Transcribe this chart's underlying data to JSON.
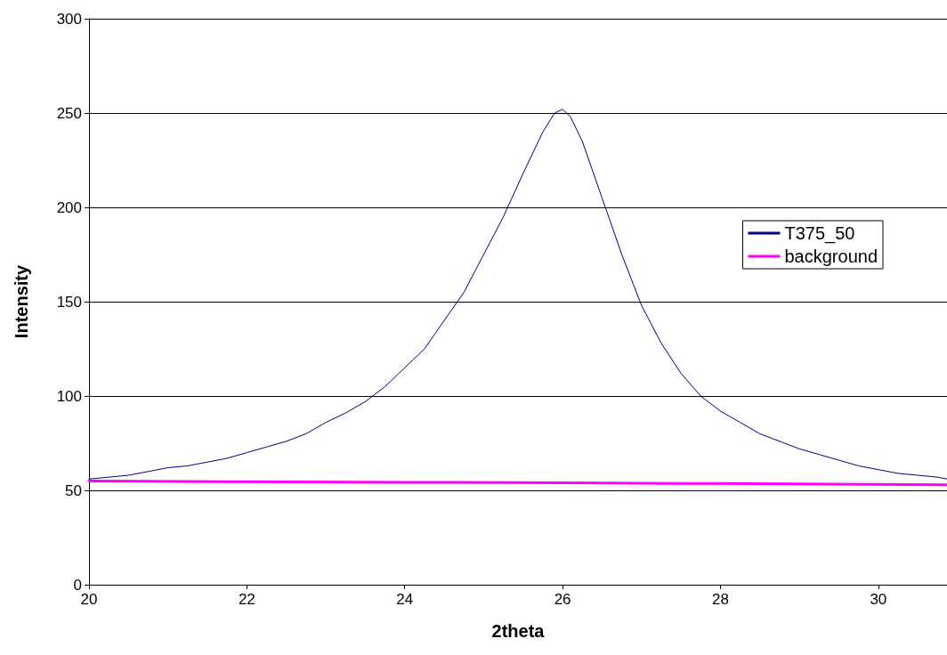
{
  "chart_data": {
    "type": "line",
    "xlabel": "2theta",
    "ylabel": "Intensity",
    "xlim": [
      20,
      30.87
    ],
    "xticks": [
      20,
      22,
      24,
      26,
      28,
      30
    ],
    "ylim": [
      0,
      300
    ],
    "yticks": [
      0,
      50,
      100,
      150,
      200,
      250,
      300
    ],
    "grid": "y",
    "legend": "right",
    "marker": "none",
    "line_style": "solid",
    "series": [
      {
        "name": "T375_50",
        "color": "#000080",
        "x": [
          20,
          20.25,
          20.5,
          20.75,
          21,
          21.25,
          21.5,
          21.75,
          22,
          22.25,
          22.5,
          22.75,
          23,
          23.25,
          23.5,
          23.75,
          24,
          24.25,
          24.5,
          24.75,
          25,
          25.25,
          25.5,
          25.75,
          25.9,
          26,
          26.1,
          26.25,
          26.5,
          26.75,
          27,
          27.25,
          27.5,
          27.75,
          28,
          28.25,
          28.5,
          28.75,
          29,
          29.25,
          29.5,
          29.75,
          30,
          30.25,
          30.5,
          30.75,
          30.87
        ],
        "values": [
          56,
          57,
          58,
          60,
          62,
          63,
          65,
          67,
          70,
          73,
          76,
          80,
          86,
          91,
          97,
          105,
          115,
          125,
          140,
          155,
          175,
          195,
          218,
          240,
          250,
          252,
          248,
          235,
          205,
          175,
          148,
          128,
          112,
          100,
          92,
          86,
          80,
          76,
          72,
          69,
          66,
          63,
          61,
          59,
          58,
          57,
          56
        ]
      },
      {
        "name": "background",
        "color": "#ff00ff",
        "x": [
          20,
          22,
          24,
          26,
          28,
          30.87
        ],
        "values": [
          55,
          54.6,
          54.3,
          54,
          53.6,
          53
        ]
      }
    ]
  }
}
